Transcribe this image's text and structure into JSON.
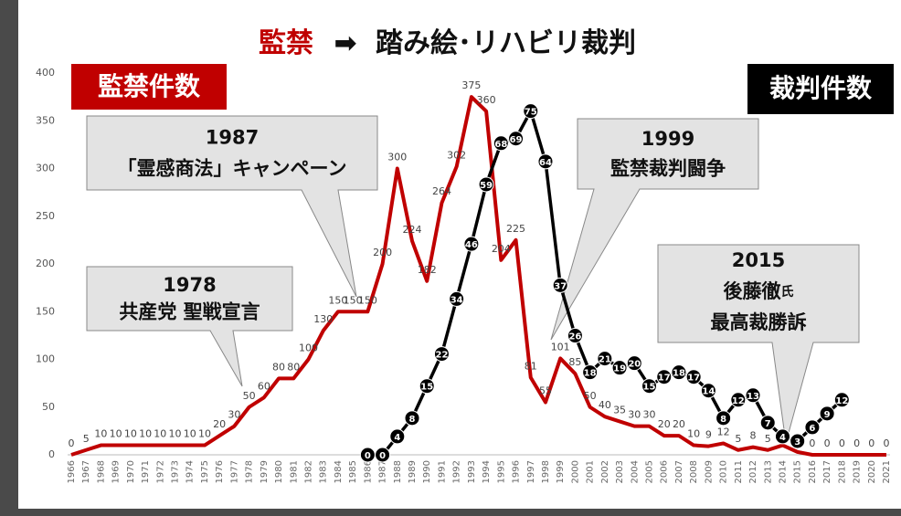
{
  "chart_data": {
    "type": "line",
    "title_parts": [
      "監禁",
      "➡",
      "踏み絵･リハビリ裁判"
    ],
    "x": [
      1966,
      1967,
      1968,
      1969,
      1970,
      1971,
      1972,
      1973,
      1974,
      1975,
      1976,
      1977,
      1978,
      1979,
      1980,
      1981,
      1982,
      1983,
      1984,
      1985,
      1986,
      1987,
      1988,
      1989,
      1990,
      1991,
      1992,
      1993,
      1994,
      1995,
      1996,
      1997,
      1998,
      1999,
      2000,
      2001,
      2002,
      2003,
      2004,
      2005,
      2006,
      2007,
      2008,
      2009,
      2010,
      2011,
      2012,
      2013,
      2014,
      2015,
      2016,
      2017,
      2018,
      2019,
      2020,
      2021
    ],
    "series": [
      {
        "name": "監禁件数",
        "color": "#c00000",
        "axis": "y",
        "values": [
          0,
          5,
          10,
          10,
          10,
          10,
          10,
          10,
          10,
          10,
          20,
          30,
          50,
          60,
          80,
          80,
          100,
          130,
          150,
          150,
          150,
          200,
          300,
          224,
          182,
          264,
          302,
          375,
          360,
          204,
          225,
          81,
          55,
          101,
          85,
          50,
          40,
          35,
          30,
          30,
          20,
          20,
          10,
          9,
          12,
          5,
          8,
          5,
          10,
          3,
          0,
          0,
          0,
          0,
          0,
          0
        ]
      },
      {
        "name": "裁判件数",
        "color": "#000000",
        "axis": "y2",
        "values": [
          null,
          null,
          null,
          null,
          null,
          null,
          null,
          null,
          null,
          null,
          null,
          null,
          null,
          null,
          null,
          null,
          null,
          null,
          null,
          null,
          0,
          0,
          4,
          8,
          15,
          22,
          34,
          46,
          59,
          68,
          69,
          75,
          64,
          37,
          26,
          18,
          21,
          19,
          20,
          15,
          17,
          18,
          17,
          14,
          8,
          12,
          13,
          7,
          4,
          3,
          6,
          9,
          12,
          null,
          null,
          null
        ]
      }
    ],
    "ylim": [
      0,
      400
    ],
    "yticks": [
      0,
      50,
      100,
      150,
      200,
      250,
      300,
      350,
      400
    ],
    "y2lim": [
      0,
      83.3
    ],
    "annotations": [
      {
        "lines": [
          "1978",
          "共産党 聖戦宣言"
        ]
      },
      {
        "lines": [
          "1987",
          "「霊感商法」キャンペーン"
        ]
      },
      {
        "lines": [
          "1999",
          "監禁裁判闘争"
        ]
      },
      {
        "lines": [
          "2015",
          "後藤徹",
          "氏",
          "最高裁勝訴"
        ]
      }
    ]
  }
}
